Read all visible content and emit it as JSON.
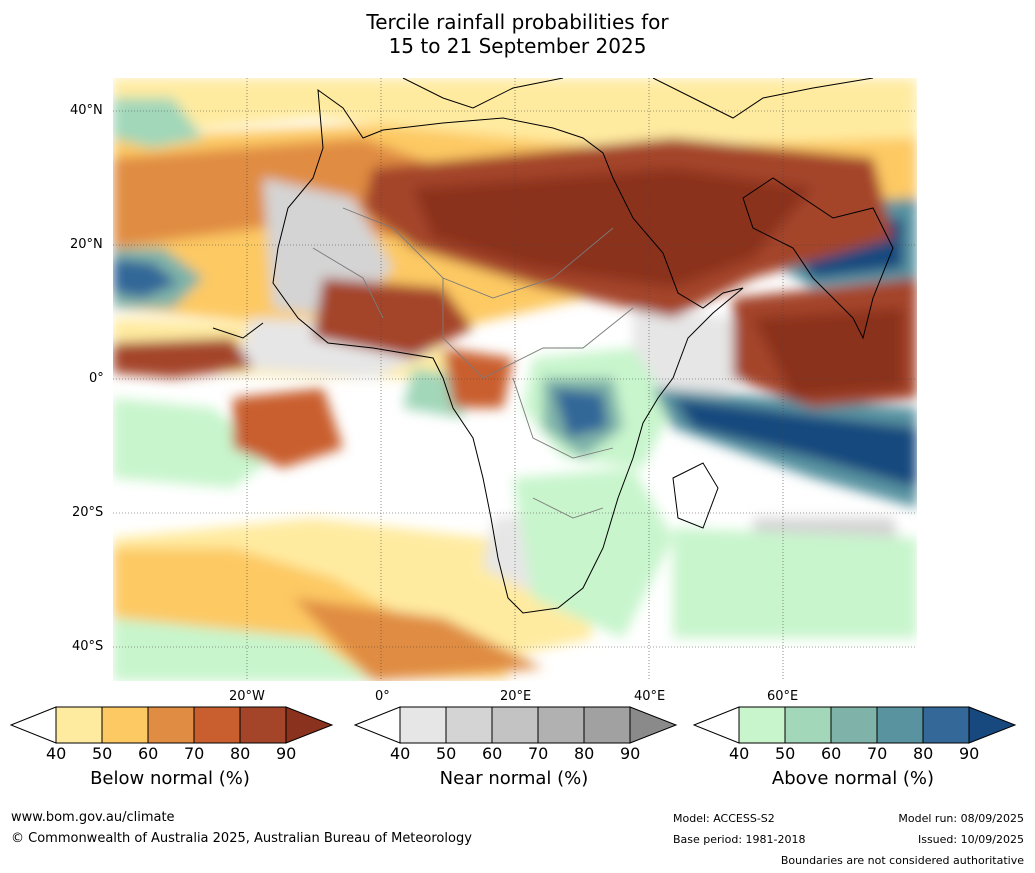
{
  "title": {
    "line1": "Tercile rainfall probabilities for",
    "line2": "15 to 21 September 2025"
  },
  "lat_labels": [
    "40°N",
    "20°N",
    "0°",
    "20°S",
    "40°S"
  ],
  "lon_labels": [
    "20°W",
    "0°",
    "20°E",
    "40°E",
    "60°E"
  ],
  "colorbars": [
    {
      "title": "Below normal (%)",
      "ticks": [
        "40",
        "50",
        "60",
        "70",
        "80",
        "90"
      ],
      "colors": [
        "#ffffff",
        "#ffeba0",
        "#fdc963",
        "#e08c43",
        "#c95f2e",
        "#a4452a",
        "#8b321e"
      ]
    },
    {
      "title": "Near normal (%)",
      "ticks": [
        "40",
        "50",
        "60",
        "70",
        "80",
        "90"
      ],
      "colors": [
        "#ffffff",
        "#e6e6e6",
        "#d4d4d4",
        "#c3c3c3",
        "#b1b1b1",
        "#a1a1a1",
        "#8a8a8a"
      ]
    },
    {
      "title": "Above normal (%)",
      "ticks": [
        "40",
        "50",
        "60",
        "70",
        "80",
        "90"
      ],
      "colors": [
        "#ffffff",
        "#c8f5cc",
        "#a2d7b9",
        "#7fb3a9",
        "#5993a0",
        "#336898",
        "#17487e"
      ]
    }
  ],
  "footer": {
    "website": "www.bom.gov.au/climate",
    "copyright": "© Commonwealth of Australia 2025, Australian Bureau of Meteorology",
    "model": "Model: ACCESS-S2",
    "base_period": "Base period: 1981-2018",
    "model_run": "Model run: 08/09/2025",
    "issued": "Issued: 10/09/2025",
    "disclaimer": "Boundaries are not considered authoritative"
  }
}
